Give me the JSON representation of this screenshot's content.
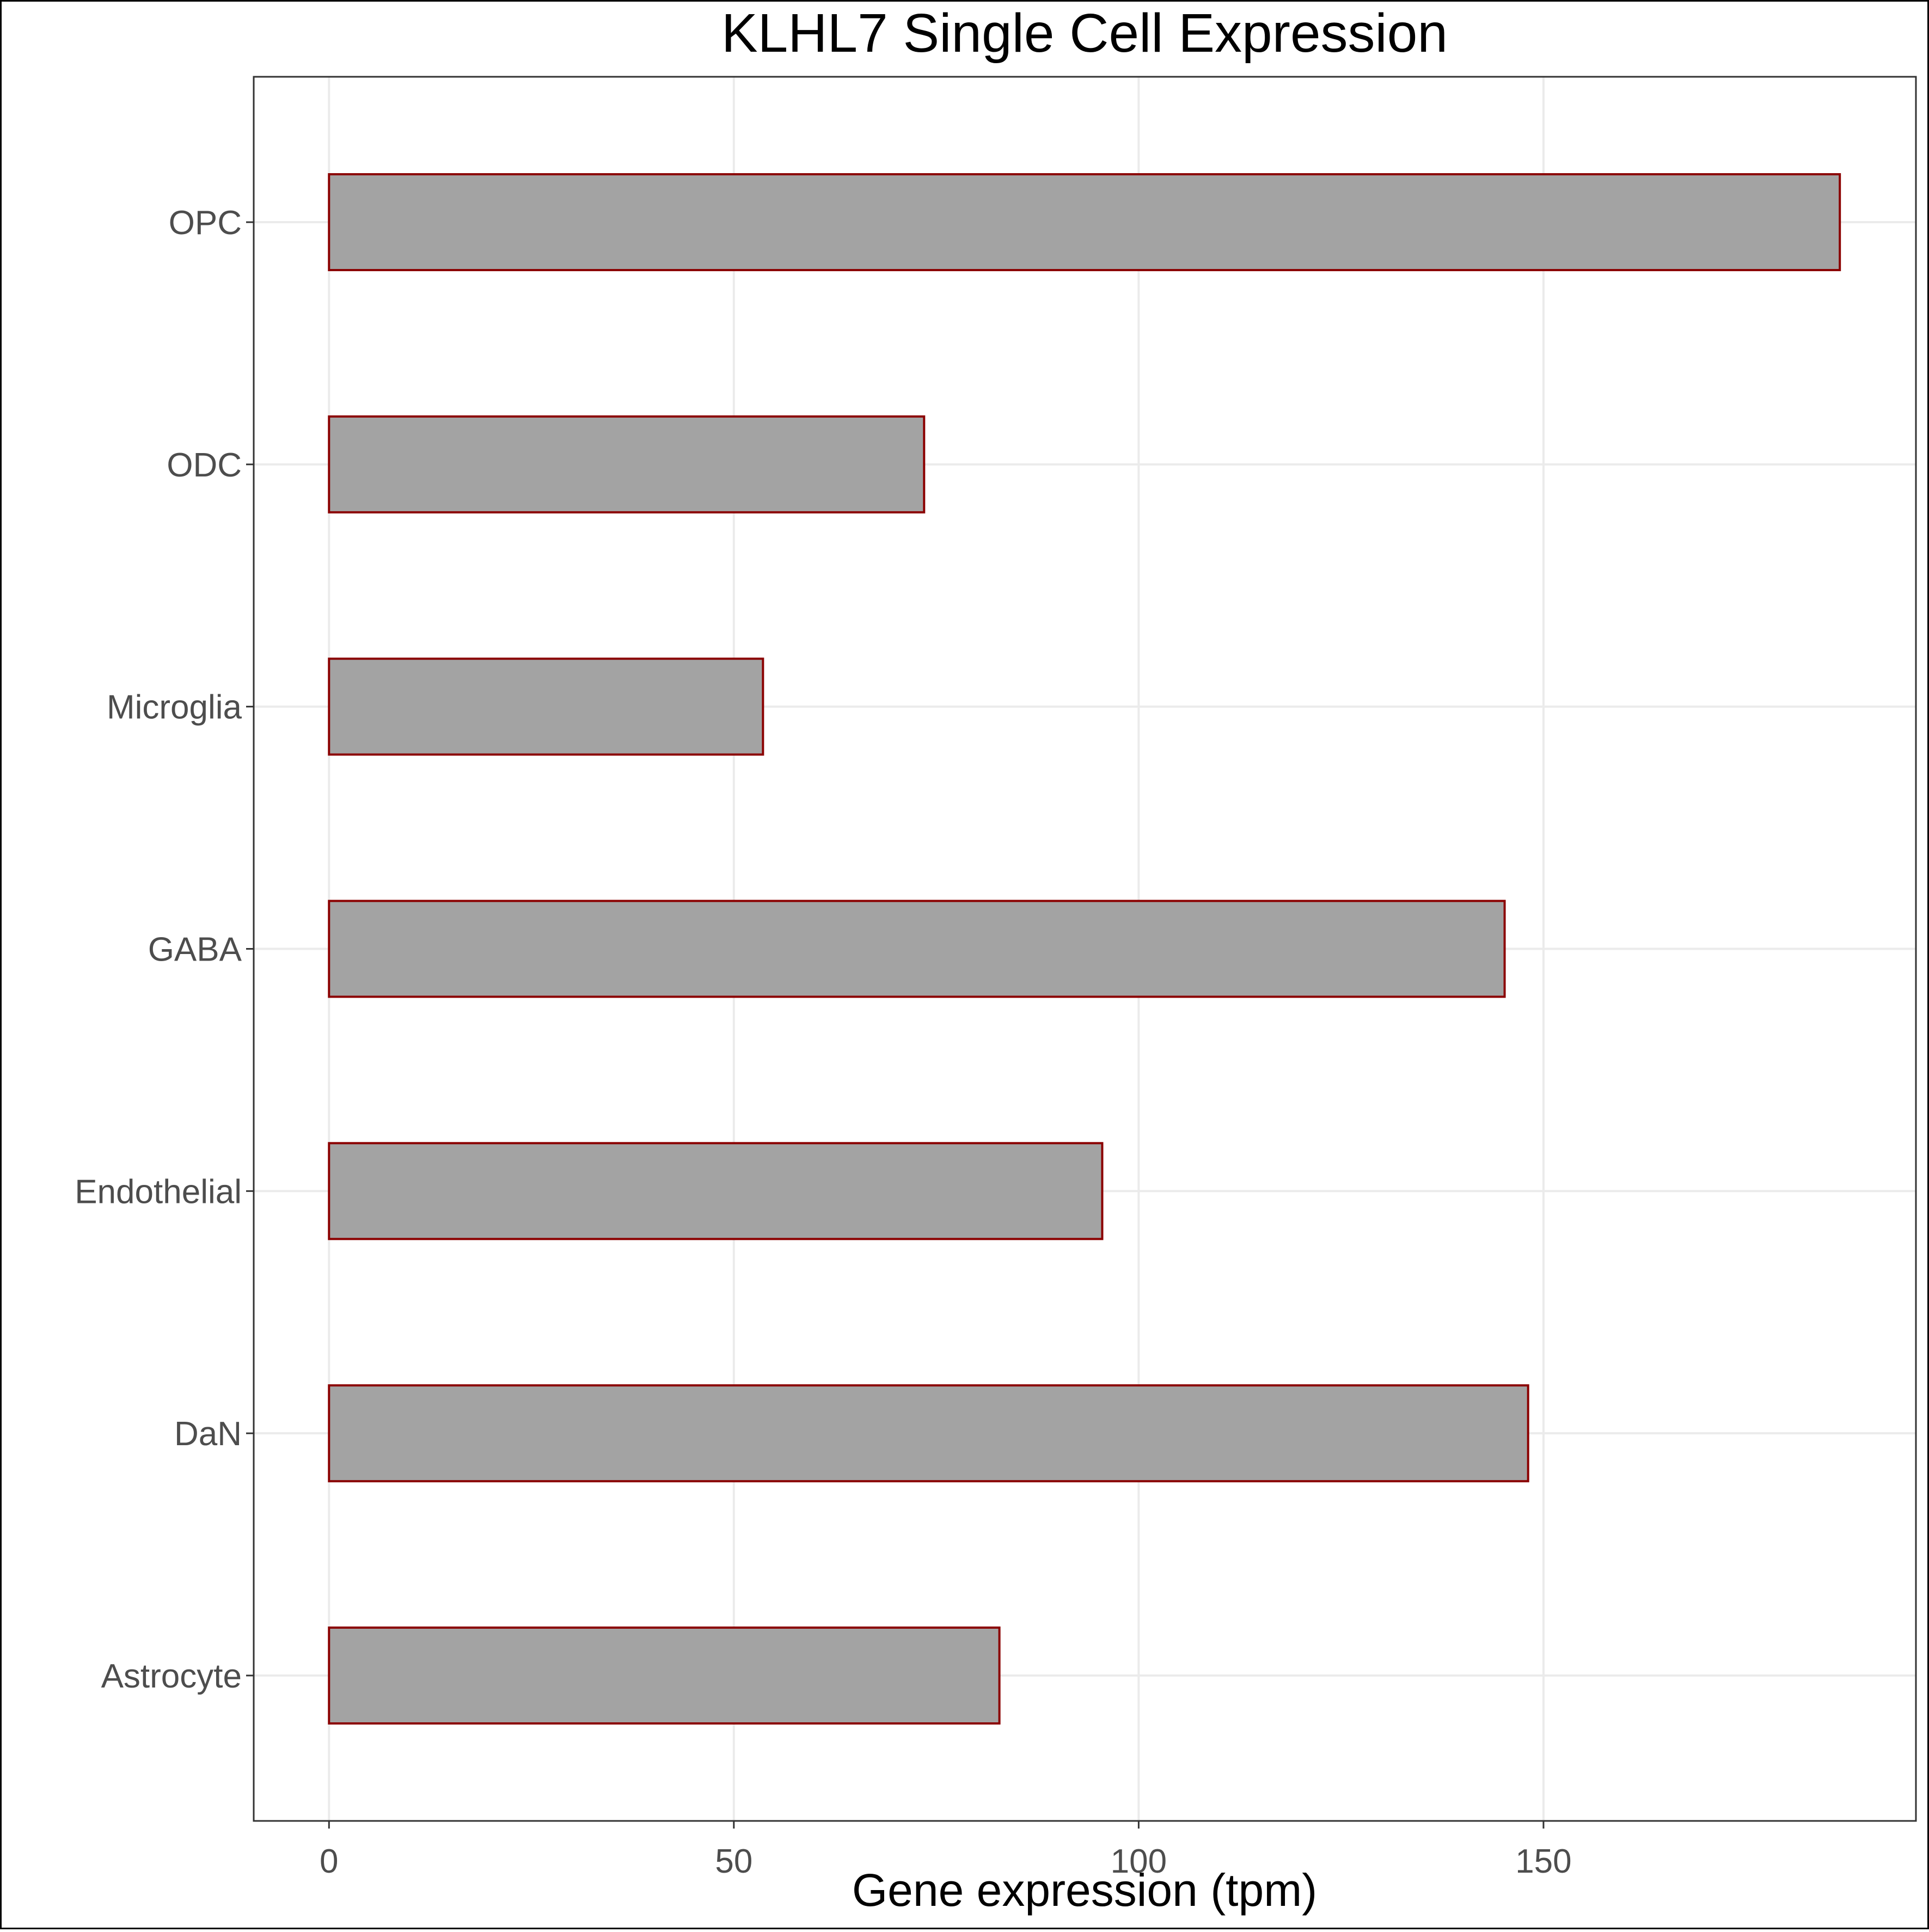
{
  "chart_data": {
    "type": "bar",
    "orientation": "horizontal",
    "title": "KLHL7 Single Cell Expression",
    "xlabel": "Gene expression (tpm)",
    "ylabel": "",
    "categories": [
      "OPC",
      "ODC",
      "Microglia",
      "GABA",
      "Endothelial",
      "DaN",
      "Astrocyte"
    ],
    "values": [
      186.6,
      73.5,
      53.6,
      145.2,
      95.5,
      148.1,
      82.8
    ],
    "xlim": [
      -9.3,
      196
    ],
    "xticks": [
      0,
      50,
      100,
      150
    ],
    "xtick_labels": [
      "0",
      "50",
      "100",
      "150"
    ],
    "grid": true,
    "legend": "none",
    "colors": {
      "bar_fill": "#a3a3a3",
      "bar_stroke": "#8b0000",
      "grid": "#ebebeb",
      "axis_text": "#4d4d4d",
      "title_text": "#000000",
      "panel_border": "#333333"
    }
  }
}
